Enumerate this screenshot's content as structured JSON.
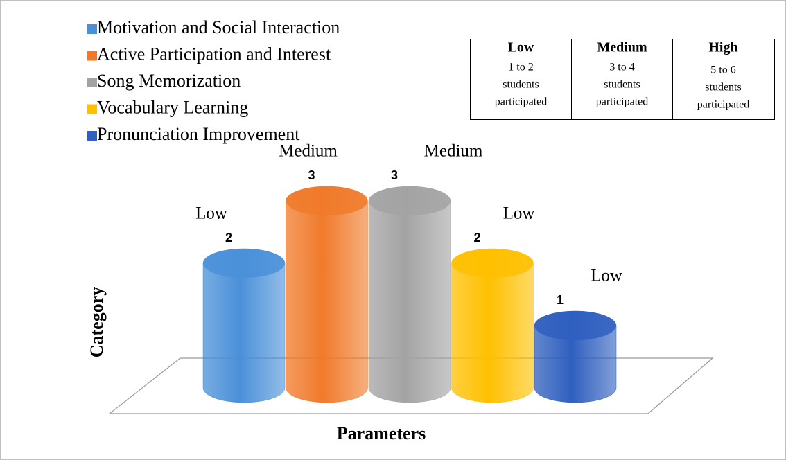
{
  "chart_data": {
    "type": "bar",
    "x_label": "Parameters",
    "y_label": "Category",
    "categories": [
      null
    ],
    "series": [
      {
        "name": "Motivation and Social Interaction",
        "color": "#4a90d9",
        "values": [
          2
        ],
        "annotation": "Low"
      },
      {
        "name": "Active Participation and Interest",
        "color": "#f07a2a",
        "values": [
          3
        ],
        "annotation": "Medium"
      },
      {
        "name": "Song Memorization",
        "color": "#a3a3a3",
        "values": [
          3
        ],
        "annotation": "Medium"
      },
      {
        "name": "Vocabulary Learning",
        "color": "#ffc000",
        "values": [
          2
        ],
        "annotation": "Low"
      },
      {
        "name": "Pronunciation Improvement",
        "color": "#2f5fbf",
        "values": [
          1
        ],
        "annotation": "Low"
      }
    ],
    "ylim": [
      0,
      6
    ],
    "key_table": [
      {
        "label": "Low",
        "lines": [
          "1 to 2",
          "students",
          "participated"
        ]
      },
      {
        "label": "Medium",
        "lines": [
          "3 to 4",
          "students",
          "participated"
        ]
      },
      {
        "label": "High",
        "lines": [
          "5 to 6",
          "students",
          "participated"
        ]
      }
    ]
  }
}
